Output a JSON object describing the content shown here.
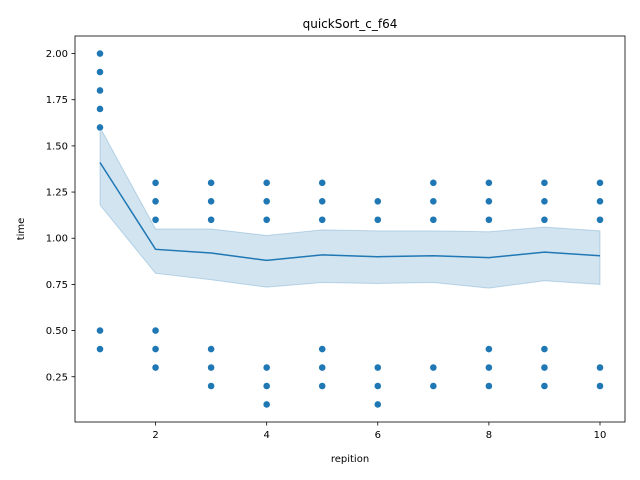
{
  "chart_data": {
    "type": "scatter",
    "title": "quickSort_c_f64",
    "xlabel": "repition",
    "ylabel": "time",
    "xlim": [
      0.55,
      10.45
    ],
    "ylim": [
      0.005,
      2.095
    ],
    "x_ticks": [
      2,
      4,
      6,
      8,
      10
    ],
    "y_ticks": [
      0.25,
      0.5,
      0.75,
      1.0,
      1.25,
      1.5,
      1.75,
      2.0
    ],
    "x_tick_labels": [
      "2",
      "4",
      "6",
      "8",
      "10"
    ],
    "y_tick_labels": [
      "0.25",
      "0.50",
      "0.75",
      "1.00",
      "1.25",
      "1.50",
      "1.75",
      "2.00"
    ],
    "grid": false,
    "colors": {
      "points": "#1f77b4",
      "line": "#1f77b4",
      "band": "#1f77b4"
    },
    "points": {
      "x": [
        1,
        1,
        1,
        1,
        1,
        1,
        1,
        2,
        2,
        2,
        2,
        2,
        2,
        3,
        3,
        3,
        3,
        3,
        3,
        4,
        4,
        4,
        4,
        4,
        4,
        5,
        5,
        5,
        5,
        5,
        5,
        6,
        6,
        6,
        6,
        6,
        7,
        7,
        7,
        7,
        7,
        8,
        8,
        8,
        8,
        8,
        8,
        9,
        9,
        9,
        9,
        9,
        9,
        10,
        10,
        10,
        10,
        10
      ],
      "y": [
        2.0,
        1.9,
        1.8,
        1.7,
        1.6,
        0.5,
        0.4,
        1.3,
        1.2,
        1.1,
        0.5,
        0.4,
        0.3,
        1.3,
        1.2,
        1.1,
        0.4,
        0.3,
        0.2,
        1.3,
        1.2,
        1.1,
        0.3,
        0.2,
        0.1,
        1.3,
        1.2,
        1.1,
        0.4,
        0.3,
        0.2,
        1.2,
        1.1,
        0.3,
        0.2,
        0.1,
        1.3,
        1.2,
        1.1,
        0.3,
        0.2,
        1.3,
        1.2,
        1.1,
        0.4,
        0.3,
        0.2,
        1.3,
        1.2,
        1.1,
        0.4,
        0.3,
        0.2,
        1.3,
        1.2,
        1.1,
        0.3,
        0.2
      ]
    },
    "mean_line": {
      "x": [
        1,
        2,
        3,
        4,
        5,
        6,
        7,
        8,
        9,
        10
      ],
      "y": [
        1.41,
        0.94,
        0.92,
        0.88,
        0.91,
        0.9,
        0.905,
        0.895,
        0.925,
        0.905
      ]
    },
    "confidence_band": {
      "x": [
        1,
        2,
        3,
        4,
        5,
        6,
        7,
        8,
        9,
        10
      ],
      "lower": [
        1.18,
        0.81,
        0.775,
        0.735,
        0.76,
        0.755,
        0.76,
        0.73,
        0.77,
        0.75
      ],
      "upper": [
        1.6,
        1.05,
        1.05,
        1.015,
        1.045,
        1.04,
        1.04,
        1.035,
        1.06,
        1.04
      ]
    }
  }
}
